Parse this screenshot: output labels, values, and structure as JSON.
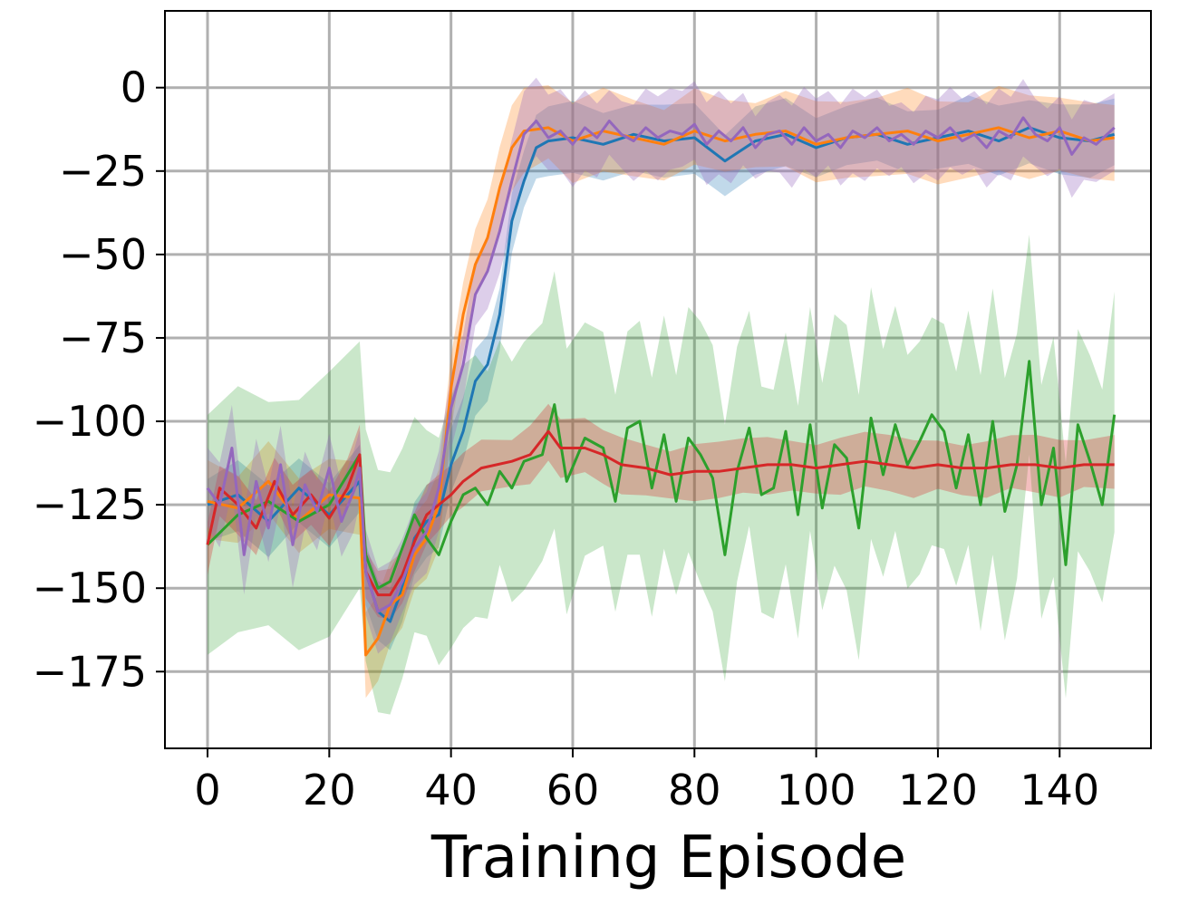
{
  "chart_data": {
    "type": "line",
    "title": "",
    "xlabel": "Training Episode",
    "ylabel": "",
    "xlim": [
      -7,
      155
    ],
    "ylim": [
      -198,
      23
    ],
    "xticks": [
      0,
      20,
      40,
      60,
      80,
      100,
      120,
      140
    ],
    "yticks": [
      0,
      -25,
      -50,
      -75,
      -100,
      -125,
      -150,
      -175
    ],
    "xtick_labels": [
      "0",
      "20",
      "40",
      "60",
      "80",
      "100",
      "120",
      "140"
    ],
    "ytick_labels": [
      "0",
      "−25",
      "−50",
      "−75",
      "−100",
      "−125",
      "−150",
      "−175"
    ],
    "grid": true,
    "legend": null,
    "series": [
      {
        "color": "#1f77b4",
        "band_opacity": 0.28,
        "band_width": 11,
        "points": [
          [
            0,
            -125
          ],
          [
            5,
            -122
          ],
          [
            10,
            -130
          ],
          [
            15,
            -120
          ],
          [
            20,
            -128
          ],
          [
            25,
            -118
          ],
          [
            26,
            -145
          ],
          [
            28,
            -157
          ],
          [
            30,
            -160
          ],
          [
            32,
            -150
          ],
          [
            34,
            -135
          ],
          [
            36,
            -130
          ],
          [
            38,
            -128
          ],
          [
            40,
            -113
          ],
          [
            42,
            -103
          ],
          [
            44,
            -88
          ],
          [
            46,
            -83
          ],
          [
            48,
            -68
          ],
          [
            50,
            -40
          ],
          [
            52,
            -28
          ],
          [
            54,
            -18
          ],
          [
            56,
            -16
          ],
          [
            60,
            -15
          ],
          [
            65,
            -17
          ],
          [
            70,
            -14
          ],
          [
            75,
            -16
          ],
          [
            80,
            -15
          ],
          [
            85,
            -22
          ],
          [
            90,
            -16
          ],
          [
            95,
            -14
          ],
          [
            100,
            -18
          ],
          [
            105,
            -15
          ],
          [
            110,
            -14
          ],
          [
            115,
            -17
          ],
          [
            120,
            -15
          ],
          [
            125,
            -13
          ],
          [
            130,
            -16
          ],
          [
            135,
            -12
          ],
          [
            140,
            -15
          ],
          [
            145,
            -16
          ],
          [
            149,
            -14
          ]
        ]
      },
      {
        "color": "#ff7f0e",
        "band_opacity": 0.28,
        "band_width": 13,
        "points": [
          [
            0,
            -124
          ],
          [
            5,
            -126
          ],
          [
            10,
            -118
          ],
          [
            15,
            -130
          ],
          [
            20,
            -122
          ],
          [
            25,
            -123
          ],
          [
            26,
            -170
          ],
          [
            28,
            -165
          ],
          [
            30,
            -155
          ],
          [
            32,
            -152
          ],
          [
            34,
            -140
          ],
          [
            36,
            -135
          ],
          [
            38,
            -125
          ],
          [
            40,
            -90
          ],
          [
            42,
            -68
          ],
          [
            44,
            -53
          ],
          [
            46,
            -45
          ],
          [
            48,
            -30
          ],
          [
            50,
            -18
          ],
          [
            52,
            -13
          ],
          [
            56,
            -12
          ],
          [
            60,
            -16
          ],
          [
            65,
            -13
          ],
          [
            70,
            -15
          ],
          [
            75,
            -17
          ],
          [
            80,
            -13
          ],
          [
            85,
            -16
          ],
          [
            90,
            -14
          ],
          [
            95,
            -13
          ],
          [
            100,
            -17
          ],
          [
            105,
            -15
          ],
          [
            110,
            -14
          ],
          [
            115,
            -13
          ],
          [
            120,
            -16
          ],
          [
            125,
            -14
          ],
          [
            130,
            -12
          ],
          [
            135,
            -15
          ],
          [
            140,
            -13
          ],
          [
            145,
            -16
          ],
          [
            149,
            -15
          ]
        ]
      },
      {
        "color": "#2ca02c",
        "band_opacity": 0.25,
        "band_width": 40,
        "points": [
          [
            0,
            -137
          ],
          [
            5,
            -128
          ],
          [
            10,
            -124
          ],
          [
            15,
            -130
          ],
          [
            20,
            -125
          ],
          [
            25,
            -110
          ],
          [
            26,
            -140
          ],
          [
            28,
            -150
          ],
          [
            30,
            -148
          ],
          [
            32,
            -138
          ],
          [
            34,
            -128
          ],
          [
            36,
            -135
          ],
          [
            38,
            -140
          ],
          [
            40,
            -130
          ],
          [
            42,
            -122
          ],
          [
            44,
            -120
          ],
          [
            46,
            -125
          ],
          [
            48,
            -115
          ],
          [
            50,
            -120
          ],
          [
            52,
            -112
          ],
          [
            55,
            -110
          ],
          [
            57,
            -95
          ],
          [
            59,
            -118
          ],
          [
            62,
            -105
          ],
          [
            65,
            -108
          ],
          [
            67,
            -124
          ],
          [
            69,
            -102
          ],
          [
            71,
            -100
          ],
          [
            73,
            -120
          ],
          [
            75,
            -104
          ],
          [
            77,
            -124
          ],
          [
            79,
            -105
          ],
          [
            81,
            -110
          ],
          [
            83,
            -117
          ],
          [
            85,
            -140
          ],
          [
            87,
            -115
          ],
          [
            89,
            -102
          ],
          [
            91,
            -122
          ],
          [
            93,
            -120
          ],
          [
            95,
            -103
          ],
          [
            97,
            -128
          ],
          [
            99,
            -101
          ],
          [
            101,
            -126
          ],
          [
            103,
            -107
          ],
          [
            105,
            -111
          ],
          [
            107,
            -132
          ],
          [
            109,
            -99
          ],
          [
            111,
            -116
          ],
          [
            113,
            -101
          ],
          [
            115,
            -113
          ],
          [
            117,
            -106
          ],
          [
            119,
            -98
          ],
          [
            121,
            -103
          ],
          [
            123,
            -120
          ],
          [
            125,
            -104
          ],
          [
            127,
            -125
          ],
          [
            129,
            -100
          ],
          [
            131,
            -127
          ],
          [
            133,
            -113
          ],
          [
            135,
            -82
          ],
          [
            137,
            -125
          ],
          [
            139,
            -108
          ],
          [
            141,
            -143
          ],
          [
            143,
            -101
          ],
          [
            145,
            -112
          ],
          [
            147,
            -125
          ],
          [
            149,
            -98
          ]
        ]
      },
      {
        "color": "#d62728",
        "band_opacity": 0.3,
        "band_width": 9,
        "points": [
          [
            0,
            -137
          ],
          [
            2,
            -120
          ],
          [
            5,
            -125
          ],
          [
            8,
            -132
          ],
          [
            11,
            -118
          ],
          [
            14,
            -128
          ],
          [
            17,
            -122
          ],
          [
            20,
            -129
          ],
          [
            23,
            -120
          ],
          [
            25,
            -110
          ],
          [
            26,
            -145
          ],
          [
            28,
            -152
          ],
          [
            30,
            -152
          ],
          [
            32,
            -146
          ],
          [
            34,
            -136
          ],
          [
            36,
            -128
          ],
          [
            38,
            -125
          ],
          [
            40,
            -122
          ],
          [
            42,
            -118
          ],
          [
            45,
            -114
          ],
          [
            50,
            -112
          ],
          [
            53,
            -110
          ],
          [
            56,
            -103
          ],
          [
            58,
            -108
          ],
          [
            62,
            -108
          ],
          [
            65,
            -110
          ],
          [
            68,
            -113
          ],
          [
            72,
            -114
          ],
          [
            76,
            -116
          ],
          [
            80,
            -115
          ],
          [
            84,
            -115
          ],
          [
            88,
            -114
          ],
          [
            92,
            -113
          ],
          [
            96,
            -113
          ],
          [
            100,
            -114
          ],
          [
            104,
            -113
          ],
          [
            108,
            -112
          ],
          [
            112,
            -113
          ],
          [
            116,
            -114
          ],
          [
            120,
            -113
          ],
          [
            124,
            -114
          ],
          [
            128,
            -114
          ],
          [
            132,
            -113
          ],
          [
            136,
            -113
          ],
          [
            140,
            -114
          ],
          [
            144,
            -113
          ],
          [
            149,
            -113
          ]
        ]
      },
      {
        "color": "#9467bd",
        "band_opacity": 0.32,
        "band_width": 13,
        "points": [
          [
            0,
            -120
          ],
          [
            2,
            -125
          ],
          [
            4,
            -108
          ],
          [
            6,
            -140
          ],
          [
            8,
            -118
          ],
          [
            10,
            -132
          ],
          [
            12,
            -113
          ],
          [
            14,
            -137
          ],
          [
            16,
            -119
          ],
          [
            18,
            -127
          ],
          [
            20,
            -114
          ],
          [
            22,
            -130
          ],
          [
            24,
            -121
          ],
          [
            25,
            -114
          ],
          [
            26,
            -145
          ],
          [
            28,
            -157
          ],
          [
            30,
            -155
          ],
          [
            32,
            -148
          ],
          [
            34,
            -138
          ],
          [
            36,
            -133
          ],
          [
            38,
            -120
          ],
          [
            40,
            -96
          ],
          [
            42,
            -83
          ],
          [
            44,
            -62
          ],
          [
            46,
            -55
          ],
          [
            48,
            -43
          ],
          [
            50,
            -28
          ],
          [
            52,
            -14
          ],
          [
            54,
            -10
          ],
          [
            56,
            -15
          ],
          [
            58,
            -13
          ],
          [
            60,
            -17
          ],
          [
            62,
            -12
          ],
          [
            64,
            -15
          ],
          [
            66,
            -10
          ],
          [
            68,
            -14
          ],
          [
            70,
            -16
          ],
          [
            72,
            -12
          ],
          [
            74,
            -15
          ],
          [
            76,
            -13
          ],
          [
            78,
            -14
          ],
          [
            80,
            -11
          ],
          [
            82,
            -17
          ],
          [
            84,
            -13
          ],
          [
            86,
            -16
          ],
          [
            88,
            -12
          ],
          [
            90,
            -18
          ],
          [
            92,
            -14
          ],
          [
            94,
            -13
          ],
          [
            96,
            -17
          ],
          [
            98,
            -12
          ],
          [
            100,
            -16
          ],
          [
            102,
            -14
          ],
          [
            104,
            -18
          ],
          [
            106,
            -13
          ],
          [
            108,
            -15
          ],
          [
            110,
            -12
          ],
          [
            112,
            -16
          ],
          [
            114,
            -14
          ],
          [
            116,
            -17
          ],
          [
            118,
            -13
          ],
          [
            120,
            -15
          ],
          [
            122,
            -12
          ],
          [
            124,
            -16
          ],
          [
            126,
            -14
          ],
          [
            128,
            -18
          ],
          [
            130,
            -13
          ],
          [
            132,
            -15
          ],
          [
            134,
            -9
          ],
          [
            136,
            -14
          ],
          [
            138,
            -16
          ],
          [
            140,
            -12
          ],
          [
            142,
            -20
          ],
          [
            144,
            -15
          ],
          [
            146,
            -17
          ],
          [
            149,
            -12
          ]
        ]
      }
    ]
  }
}
